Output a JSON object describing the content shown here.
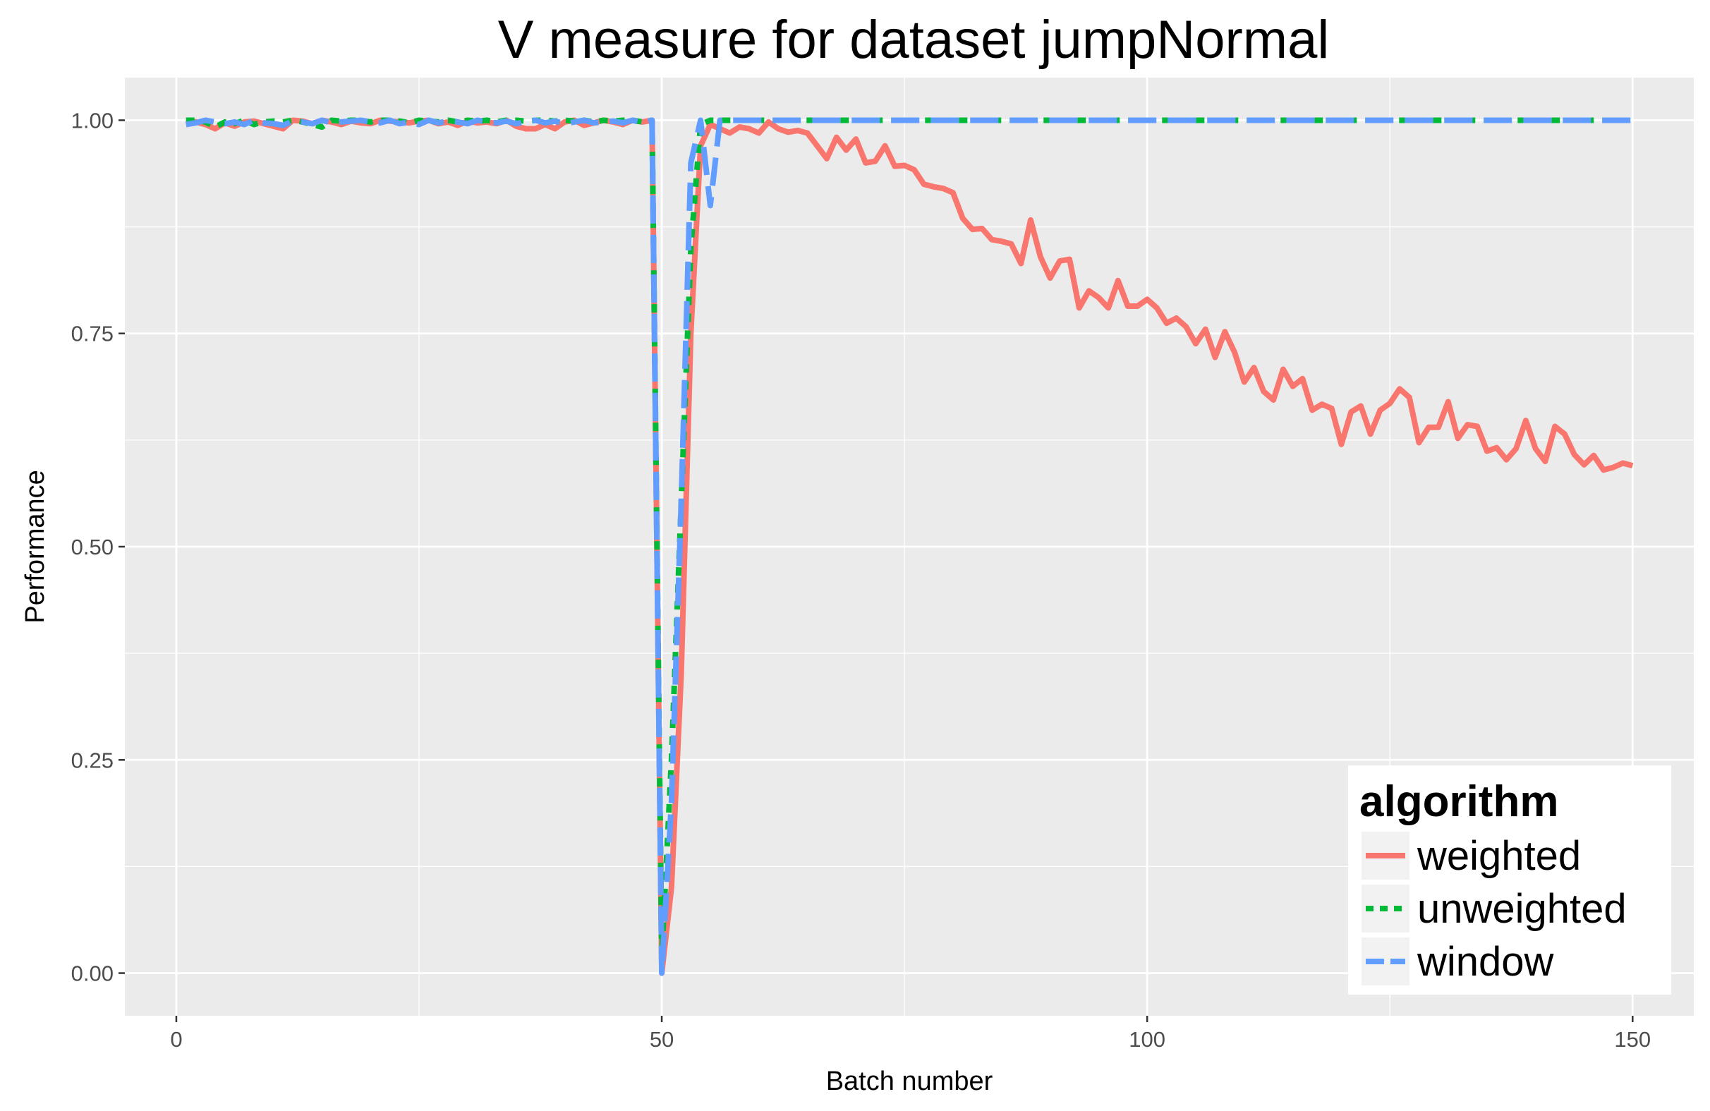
{
  "chart_data": {
    "type": "line",
    "title": "V measure for dataset jumpNormal",
    "xlabel": "Batch number",
    "ylabel": "Performance",
    "xlim": [
      -5.3,
      156.3
    ],
    "ylim": [
      -0.05,
      1.05
    ],
    "x_ticks": [
      0,
      50,
      100,
      150
    ],
    "x_tick_labels": [
      "0",
      "50",
      "100",
      "150"
    ],
    "y_ticks": [
      0,
      0.25,
      0.5,
      0.75,
      1
    ],
    "y_tick_labels": [
      "0.00",
      "0.25",
      "0.50",
      "0.75",
      "1.00"
    ],
    "grid": true,
    "legend": {
      "title": "algorithm",
      "position": "bottom-right"
    },
    "series": [
      {
        "name": "weighted",
        "color": "#F8766D",
        "linestyle": "solid",
        "x": [
          1,
          2,
          3,
          4,
          5,
          6,
          7,
          8,
          9,
          10,
          11,
          12,
          13,
          14,
          15,
          16,
          17,
          18,
          19,
          20,
          21,
          22,
          23,
          24,
          25,
          26,
          27,
          28,
          29,
          30,
          31,
          32,
          33,
          34,
          35,
          36,
          37,
          38,
          39,
          40,
          41,
          42,
          43,
          44,
          45,
          46,
          47,
          48,
          49,
          50,
          51,
          52,
          53,
          54,
          55,
          56,
          57,
          58,
          59,
          60,
          61,
          62,
          63,
          64,
          65,
          66,
          67,
          68,
          69,
          70,
          71,
          72,
          73,
          74,
          75,
          76,
          77,
          78,
          79,
          80,
          81,
          82,
          83,
          84,
          85,
          86,
          87,
          88,
          89,
          90,
          91,
          92,
          93,
          94,
          95,
          96,
          97,
          98,
          99,
          100,
          101,
          102,
          103,
          104,
          105,
          106,
          107,
          108,
          109,
          110,
          111,
          112,
          113,
          114,
          115,
          116,
          117,
          118,
          119,
          120,
          121,
          122,
          123,
          124,
          125,
          126,
          127,
          128,
          129,
          130,
          131,
          132,
          133,
          134,
          135,
          136,
          137,
          138,
          139,
          140,
          141,
          142,
          143,
          144,
          145,
          146,
          147,
          148,
          149,
          150
        ],
        "values": [
          1.0,
          0.998,
          0.995,
          0.99,
          0.997,
          0.993,
          0.998,
          0.999,
          0.996,
          0.993,
          0.99,
          1.0,
          0.999,
          0.996,
          1.0,
          0.998,
          0.995,
          0.999,
          0.997,
          0.996,
          1.0,
          0.999,
          0.998,
          0.997,
          0.999,
          1.0,
          0.996,
          0.998,
          0.994,
          0.999,
          0.997,
          0.998,
          0.996,
          1.0,
          0.993,
          0.99,
          0.99,
          0.995,
          0.99,
          0.998,
          1.0,
          0.994,
          0.997,
          1.0,
          0.998,
          0.995,
          1.0,
          0.998,
          1.0,
          0.0,
          0.1,
          0.35,
          0.75,
          0.97,
          0.995,
          0.99,
          0.985,
          0.992,
          0.99,
          0.985,
          0.998,
          0.99,
          0.986,
          0.988,
          0.985,
          0.97,
          0.955,
          0.98,
          0.965,
          0.978,
          0.95,
          0.952,
          0.97,
          0.946,
          0.947,
          0.942,
          0.925,
          0.922,
          0.92,
          0.915,
          0.885,
          0.872,
          0.873,
          0.86,
          0.858,
          0.855,
          0.832,
          0.883,
          0.84,
          0.815,
          0.835,
          0.837,
          0.78,
          0.8,
          0.792,
          0.78,
          0.812,
          0.782,
          0.782,
          0.79,
          0.78,
          0.762,
          0.768,
          0.758,
          0.738,
          0.755,
          0.722,
          0.752,
          0.728,
          0.693,
          0.71,
          0.682,
          0.672,
          0.708,
          0.688,
          0.697,
          0.66,
          0.667,
          0.662,
          0.62,
          0.658,
          0.665,
          0.632,
          0.66,
          0.668,
          0.685,
          0.675,
          0.622,
          0.64,
          0.64,
          0.67,
          0.627,
          0.643,
          0.641,
          0.612,
          0.616,
          0.602,
          0.615,
          0.648,
          0.615,
          0.6,
          0.641,
          0.632,
          0.608,
          0.596,
          0.607,
          0.59,
          0.593,
          0.598,
          0.595
        ]
      },
      {
        "name": "unweighted",
        "color": "#00BA38",
        "linestyle": "dotted",
        "x": [
          1,
          2,
          3,
          4,
          5,
          6,
          7,
          8,
          9,
          10,
          11,
          12,
          13,
          14,
          15,
          16,
          17,
          18,
          19,
          20,
          21,
          22,
          23,
          24,
          25,
          26,
          27,
          28,
          29,
          30,
          31,
          32,
          33,
          34,
          35,
          36,
          37,
          38,
          39,
          40,
          41,
          42,
          43,
          44,
          45,
          46,
          47,
          48,
          49,
          50,
          51,
          52,
          53,
          54,
          55,
          56,
          57,
          58,
          59,
          60,
          150
        ],
        "values": [
          1.0,
          1.0,
          0.998,
          0.992,
          0.998,
          0.996,
          1.0,
          0.995,
          0.998,
          0.999,
          0.998,
          1.0,
          0.998,
          0.995,
          0.992,
          1.0,
          0.999,
          1.0,
          1.0,
          0.998,
          1.0,
          1.0,
          0.999,
          0.997,
          1.0,
          0.999,
          0.998,
          1.0,
          0.998,
          1.0,
          0.999,
          1.0,
          0.998,
          1.0,
          1.0,
          0.999,
          1.0,
          1.0,
          0.999,
          1.0,
          0.999,
          1.0,
          0.998,
          1.0,
          0.999,
          1.0,
          1.0,
          0.998,
          1.0,
          0.02,
          0.25,
          0.55,
          0.85,
          0.995,
          1.0,
          1.0,
          1.0,
          1.0,
          1.0,
          1.0,
          1.0
        ]
      },
      {
        "name": "window",
        "color": "#619CFF",
        "linestyle": "dashed",
        "x": [
          1,
          2,
          3,
          4,
          5,
          6,
          7,
          8,
          9,
          10,
          11,
          12,
          13,
          14,
          15,
          16,
          17,
          18,
          19,
          20,
          21,
          22,
          23,
          24,
          25,
          26,
          27,
          28,
          29,
          30,
          31,
          32,
          33,
          34,
          35,
          36,
          37,
          38,
          39,
          40,
          41,
          42,
          43,
          44,
          45,
          46,
          47,
          48,
          49,
          50,
          51,
          52,
          53,
          54,
          55,
          56,
          57,
          150
        ],
        "values": [
          0.995,
          0.997,
          1.0,
          0.998,
          0.996,
          0.998,
          0.995,
          1.0,
          0.997,
          0.996,
          0.994,
          0.999,
          0.998,
          0.996,
          1.0,
          0.997,
          0.998,
          0.999,
          1.0,
          0.998,
          0.997,
          1.0,
          0.996,
          0.998,
          0.995,
          1.0,
          0.997,
          0.999,
          0.998,
          0.996,
          1.0,
          0.998,
          0.997,
          0.999,
          0.996,
          0.998,
          1.0,
          0.997,
          0.999,
          0.996,
          0.998,
          1.0,
          0.997,
          0.998,
          0.999,
          0.997,
          1.0,
          0.997,
          1.0,
          0.0,
          0.2,
          0.55,
          0.95,
          1.0,
          0.9,
          1.0,
          1.0,
          1.0
        ]
      }
    ]
  }
}
